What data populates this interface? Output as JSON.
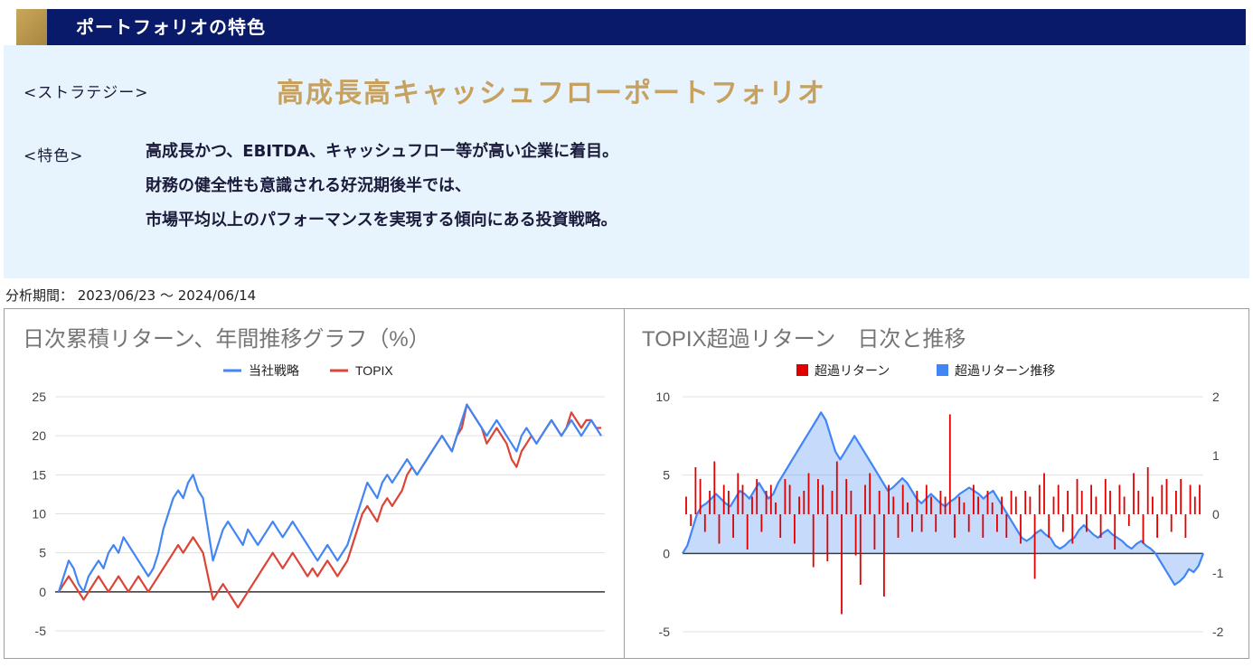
{
  "header": {
    "title": "ポートフォリオの特色"
  },
  "strategy": {
    "label": "<ストラテジー>",
    "name": "高成長高キャッシュフローポートフォリオ"
  },
  "features": {
    "label": "<特色>",
    "lines": [
      "高成長かつ、EBITDA、キャッシュフロー等が高い企業に着目。",
      "財務の健全性も意識される好況期後半では、",
      "市場平均以上のパフォーマンスを実現する傾向にある投資戦略。"
    ]
  },
  "period": {
    "text": "分析期間： 2023/06/23 ～ 2024/06/14"
  },
  "colors": {
    "header_bg": "#0a1a6b",
    "accent": "#c6a160",
    "panel_bg": "#e8f4fd",
    "blue": "#4285f4",
    "red": "#db4437"
  },
  "chart_data": [
    {
      "type": "line",
      "title": "日次累積リターン、年間推移グラフ（%）",
      "legend": "top",
      "series": [
        {
          "name": "当社戦略",
          "color": "#4285f4",
          "values": [
            0,
            2,
            4,
            3,
            1,
            0,
            2,
            3,
            4,
            3,
            5,
            6,
            5,
            7,
            6,
            5,
            4,
            3,
            2,
            3,
            5,
            8,
            10,
            12,
            13,
            12,
            14,
            15,
            13,
            12,
            8,
            4,
            6,
            8,
            9,
            8,
            7,
            6,
            8,
            7,
            6,
            7,
            8,
            9,
            8,
            7,
            8,
            9,
            8,
            7,
            6,
            5,
            4,
            5,
            6,
            5,
            4,
            5,
            6,
            8,
            10,
            12,
            14,
            13,
            12,
            14,
            15,
            14,
            15,
            16,
            17,
            16,
            15,
            16,
            17,
            18,
            19,
            20,
            19,
            18,
            20,
            22,
            24,
            23,
            22,
            21,
            20,
            21,
            22,
            21,
            20,
            19,
            18,
            20,
            21,
            20,
            19,
            20,
            21,
            22,
            21,
            20,
            21,
            22,
            21,
            20,
            21,
            22,
            21,
            20
          ]
        },
        {
          "name": "TOPIX",
          "color": "#db4437",
          "values": [
            0,
            1,
            2,
            1,
            0,
            -1,
            0,
            1,
            2,
            1,
            0,
            1,
            2,
            1,
            0,
            1,
            2,
            1,
            0,
            1,
            2,
            3,
            4,
            5,
            6,
            5,
            6,
            7,
            6,
            5,
            2,
            -1,
            0,
            1,
            0,
            -1,
            -2,
            -1,
            0,
            1,
            2,
            3,
            4,
            5,
            4,
            3,
            4,
            5,
            4,
            3,
            2,
            3,
            2,
            3,
            4,
            3,
            2,
            3,
            4,
            6,
            8,
            10,
            11,
            10,
            9,
            11,
            12,
            11,
            12,
            13,
            15,
            16,
            15,
            16,
            17,
            18,
            19,
            20,
            19,
            18,
            20,
            21,
            24,
            23,
            22,
            21,
            19,
            20,
            21,
            20,
            19,
            17,
            16,
            18,
            19,
            20,
            19,
            20,
            21,
            22,
            21,
            20,
            21,
            23,
            22,
            21,
            22,
            22,
            21,
            21
          ]
        }
      ],
      "y_ticks": [
        "25",
        "20",
        "15",
        "10",
        "5",
        "0",
        "-5"
      ],
      "ylim": [
        -5,
        25
      ]
    },
    {
      "type": "bar+area",
      "title": "TOPIX超過リターン　日次と推移",
      "legend": "top",
      "series": [
        {
          "name": "超過リターン",
          "color": "#e00000",
          "axis": "right",
          "values": [
            0.3,
            -0.2,
            0.8,
            0.6,
            -0.3,
            0.4,
            0.9,
            -0.5,
            0.5,
            0.4,
            -0.4,
            0.7,
            0.5,
            -0.6,
            0.3,
            0.6,
            -0.3,
            0.4,
            0.5,
            0.2,
            -0.4,
            0.6,
            0.5,
            -0.5,
            0.3,
            0.4,
            0.7,
            -0.9,
            0.6,
            0.5,
            -0.8,
            0.4,
            0.9,
            -1.7,
            0.6,
            0.4,
            -0.7,
            -1.2,
            0.5,
            0.7,
            -0.6,
            0.4,
            -1.4,
            0.5,
            0.3,
            -0.4,
            0.5,
            0.2,
            -0.3,
            0.4,
            -0.3,
            0.5,
            0.3,
            -0.3,
            0.4,
            0.3,
            1.7,
            -0.4,
            0.3,
            0.2,
            -0.3,
            0.5,
            0.3,
            -0.4,
            0.4,
            0.2,
            -0.3,
            0.3,
            -0.4,
            0.4,
            0.3,
            -0.5,
            0.4,
            0.3,
            -1.1,
            0.5,
            0.7,
            -0.4,
            0.3,
            0.5,
            -0.3,
            0.4,
            -0.5,
            0.6,
            0.4,
            -0.3,
            0.5,
            0.3,
            -0.4,
            0.6,
            0.4,
            -0.6,
            0.5,
            0.3,
            -0.2,
            0.7,
            0.4,
            -0.5,
            0.8,
            0.3,
            -0.4,
            0.5,
            0.6,
            -0.3,
            0.4,
            0.6,
            -0.4,
            0.5,
            0.3,
            0.5
          ]
        },
        {
          "name": "超過リターン推移",
          "color": "#4285f4",
          "axis": "left",
          "values": [
            0,
            0.5,
            1.5,
            2.5,
            3,
            3.2,
            3.5,
            3.8,
            3.5,
            3.2,
            3,
            3.5,
            4,
            3.8,
            3.5,
            4,
            4.5,
            4,
            3.5,
            3.8,
            4.5,
            5,
            5.5,
            6,
            6.5,
            7,
            7.5,
            8,
            8.5,
            9,
            8.5,
            7.5,
            6.5,
            6,
            6.5,
            7,
            7.5,
            7,
            6.5,
            6,
            5.5,
            5,
            4.5,
            4,
            4.2,
            4.5,
            4.8,
            4.5,
            4,
            3.5,
            3.2,
            3.5,
            3.8,
            3.5,
            3.2,
            3,
            3.3,
            3.5,
            3.8,
            4,
            4.2,
            4,
            3.8,
            3.5,
            3.8,
            4,
            3.5,
            3,
            2.5,
            2,
            1.5,
            1,
            0.8,
            1,
            1.3,
            1.5,
            1.2,
            1,
            0.5,
            0.3,
            0.5,
            0.8,
            1,
            1.5,
            1.8,
            1.5,
            1.2,
            1,
            1.3,
            1.5,
            1.2,
            1,
            0.8,
            0.5,
            0.3,
            0.6,
            0.8,
            0.5,
            0.3,
            0,
            -0.5,
            -1,
            -1.5,
            -2,
            -1.8,
            -1.5,
            -1,
            -1.2,
            -0.8,
            0
          ]
        }
      ],
      "y_ticks_left": [
        "10",
        "5",
        "0",
        "-5"
      ],
      "y_ticks_right": [
        "2",
        "1",
        "0",
        "-1",
        "-2"
      ],
      "ylim_left": [
        -5,
        10
      ],
      "ylim_right": [
        -2,
        2
      ]
    }
  ]
}
